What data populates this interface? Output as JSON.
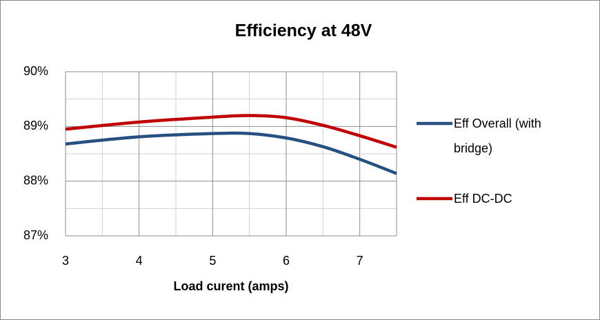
{
  "chart_data": {
    "type": "line",
    "title": "Efficiency at 48V",
    "x_label": "Load curent (amps)",
    "x": [
      3,
      4,
      5,
      5.5,
      6,
      6.5,
      7,
      7.5
    ],
    "series": [
      {
        "name": "Eff Overall (with bridge)",
        "color": "#264f82",
        "values": [
          88.68,
          88.81,
          88.87,
          88.87,
          88.79,
          88.63,
          88.4,
          88.14
        ]
      },
      {
        "name": "Eff DC-DC",
        "color": "#c00000",
        "values": [
          88.95,
          89.08,
          89.17,
          89.2,
          89.16,
          89.02,
          88.83,
          88.62
        ]
      }
    ],
    "xlim": [
      3,
      7.5
    ],
    "xticks": [
      3,
      4,
      5,
      6,
      7
    ],
    "minor_xticks": [
      3.5,
      4.5,
      5.5,
      6.5,
      7.5
    ],
    "ylim": [
      87,
      90
    ],
    "yticks": [
      {
        "value": 87,
        "label": "87%"
      },
      {
        "value": 88,
        "label": "88%"
      },
      {
        "value": 89,
        "label": "89%"
      },
      {
        "value": 90,
        "label": "90%"
      }
    ],
    "minor_yticks": [
      87.5,
      88.5,
      89.5
    ],
    "grid": true,
    "legend": "right"
  }
}
